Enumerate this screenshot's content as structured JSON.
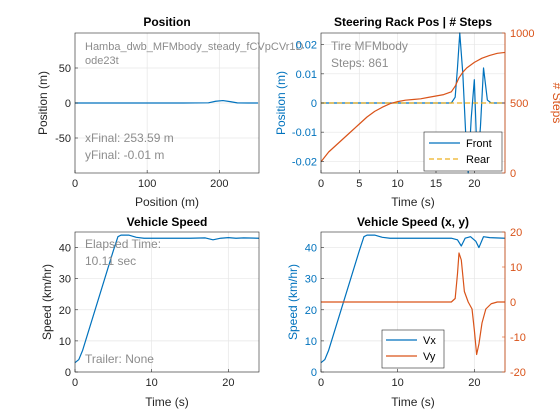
{
  "figure": {
    "colors": {
      "blue": "#0072BD",
      "orange": "#D95319",
      "yellow": "#EDB120",
      "grid": "#e6e6e6",
      "axis": "#262626",
      "annot": "#8c8c8c"
    }
  },
  "chart_data": [
    {
      "id": "position",
      "type": "line",
      "title": "Position",
      "xlabel": "Position (m)",
      "ylabel": "Position (m)",
      "xlim": [
        0,
        255
      ],
      "ylim": [
        -100,
        100
      ],
      "xticks": [
        0,
        100,
        200
      ],
      "yticks": [
        -50,
        0,
        50
      ],
      "grid": true,
      "series": [
        {
          "color": "blue",
          "x": [
            0,
            50,
            100,
            150,
            185,
            195,
            205,
            215,
            225,
            240,
            253.59
          ],
          "y": [
            0,
            0,
            0,
            0,
            0.3,
            2.5,
            3.5,
            2.0,
            0.2,
            0,
            -0.01
          ]
        }
      ],
      "annotations": {
        "file": "Hamba_dwb_MFMbody_steady_fCVpCVr1D",
        "solver": "ode23t",
        "xfinal": "xFinal: 253.59 m",
        "yfinal": "yFinal: -0.01 m"
      }
    },
    {
      "id": "steering",
      "type": "line",
      "title": "Steering Rack Pos | # Steps",
      "xlabel": "Time (s)",
      "ylabel": "Position (m)",
      "ylabel_right": "# Steps",
      "xlim": [
        0,
        24
      ],
      "ylim": [
        -0.024,
        0.024
      ],
      "ylim_right": [
        0,
        1000
      ],
      "xticks": [
        0,
        5,
        10,
        15,
        20
      ],
      "yticks": [
        -0.02,
        -0.01,
        0,
        0.01,
        0.02
      ],
      "yticks_right": [
        0,
        500,
        1000
      ],
      "grid": true,
      "legend": {
        "location": "bottom-right",
        "entries": [
          "Front",
          "Rear"
        ]
      },
      "series": [
        {
          "name": "Front",
          "axis": "left",
          "color": "blue",
          "style": "solid",
          "x": [
            0,
            17,
            17.5,
            17.8,
            18.1,
            18.5,
            18.9,
            19.2,
            19.6,
            20.0,
            20.4,
            20.8,
            21.2,
            21.7,
            22.2,
            23,
            24
          ],
          "y": [
            0,
            0,
            0.002,
            0.012,
            0.024,
            0.01,
            -0.012,
            -0.024,
            -0.005,
            0.008,
            -0.022,
            -0.008,
            0.012,
            0.001,
            0,
            0,
            0
          ]
        },
        {
          "name": "Rear",
          "axis": "left",
          "color": "yellow",
          "style": "dashed",
          "x": [
            0,
            24
          ],
          "y": [
            0,
            0
          ]
        },
        {
          "name": "# Steps",
          "axis": "right",
          "color": "orange",
          "style": "solid",
          "x": [
            0,
            1,
            2,
            3,
            4,
            5,
            6,
            7,
            8,
            9,
            10,
            11,
            12,
            13,
            14,
            15,
            16,
            17,
            17.5,
            18,
            18.5,
            19,
            20,
            21,
            22,
            23,
            24
          ],
          "y": [
            80,
            150,
            200,
            250,
            300,
            350,
            400,
            440,
            470,
            495,
            510,
            520,
            525,
            530,
            540,
            550,
            560,
            580,
            620,
            680,
            720,
            750,
            790,
            820,
            840,
            855,
            861
          ]
        }
      ],
      "annotations": {
        "tire": "Tire MFMbody",
        "steps": "Steps: 861"
      }
    },
    {
      "id": "speed",
      "type": "line",
      "title": "Vehicle Speed",
      "xlabel": "Time (s)",
      "ylabel": "Speed (km/hr)",
      "xlim": [
        0,
        24
      ],
      "ylim": [
        0,
        45
      ],
      "xticks": [
        0,
        10,
        20
      ],
      "yticks": [
        0,
        10,
        20,
        30,
        40
      ],
      "grid": true,
      "series": [
        {
          "color": "blue",
          "x": [
            0,
            0.5,
            1,
            2,
            3,
            4,
            5,
            5.6,
            6,
            7,
            8,
            9,
            10,
            12,
            15,
            17,
            18,
            19,
            20,
            21,
            22,
            24
          ],
          "y": [
            3,
            4,
            7,
            15,
            23,
            31,
            39,
            43.5,
            44,
            44,
            43.3,
            43,
            43,
            43,
            43,
            43.1,
            42.5,
            43,
            43.2,
            43,
            43.1,
            43
          ]
        }
      ],
      "annotations": {
        "elapsed_label": "Elapsed Time:",
        "elapsed_value": "10.11 sec",
        "trailer": "Trailer: None"
      }
    },
    {
      "id": "speed_xy",
      "type": "line",
      "title": "Vehicle Speed (x, y)",
      "xlabel": "Time (s)",
      "ylabel": "Speed (km/hr)",
      "xlim": [
        0,
        24
      ],
      "ylim": [
        0,
        45
      ],
      "ylim_right": [
        -20,
        20
      ],
      "xticks": [
        0,
        10,
        20
      ],
      "yticks": [
        0,
        10,
        20,
        30,
        40
      ],
      "yticks_right": [
        -20,
        -10,
        0,
        10,
        20
      ],
      "grid": true,
      "legend": {
        "location": "bottom-center",
        "entries": [
          "Vx",
          "Vy"
        ]
      },
      "series": [
        {
          "name": "Vx",
          "axis": "left",
          "color": "blue",
          "x": [
            0,
            0.5,
            1,
            2,
            3,
            4,
            5,
            5.6,
            6,
            7,
            8,
            9,
            10,
            12,
            15,
            17,
            17.8,
            18.3,
            18.8,
            19.5,
            20.2,
            20.6,
            21.2,
            22,
            24
          ],
          "y": [
            3,
            4,
            7,
            15,
            23,
            31,
            39,
            43.5,
            44,
            44,
            43.3,
            43,
            43,
            43,
            43,
            43,
            42.5,
            40.5,
            43,
            43.5,
            42,
            40,
            43.5,
            43.2,
            43
          ]
        },
        {
          "name": "Vy",
          "axis": "right",
          "color": "orange",
          "x": [
            0,
            17,
            17.5,
            17.8,
            18.0,
            18.3,
            18.7,
            19.2,
            19.7,
            20.0,
            20.3,
            20.6,
            21.0,
            21.5,
            22.2,
            23,
            24
          ],
          "y": [
            0,
            0,
            1,
            8,
            14,
            12,
            3,
            0,
            -2,
            -8,
            -15,
            -12,
            -6,
            -2,
            -0.5,
            0,
            0
          ]
        }
      ]
    }
  ]
}
